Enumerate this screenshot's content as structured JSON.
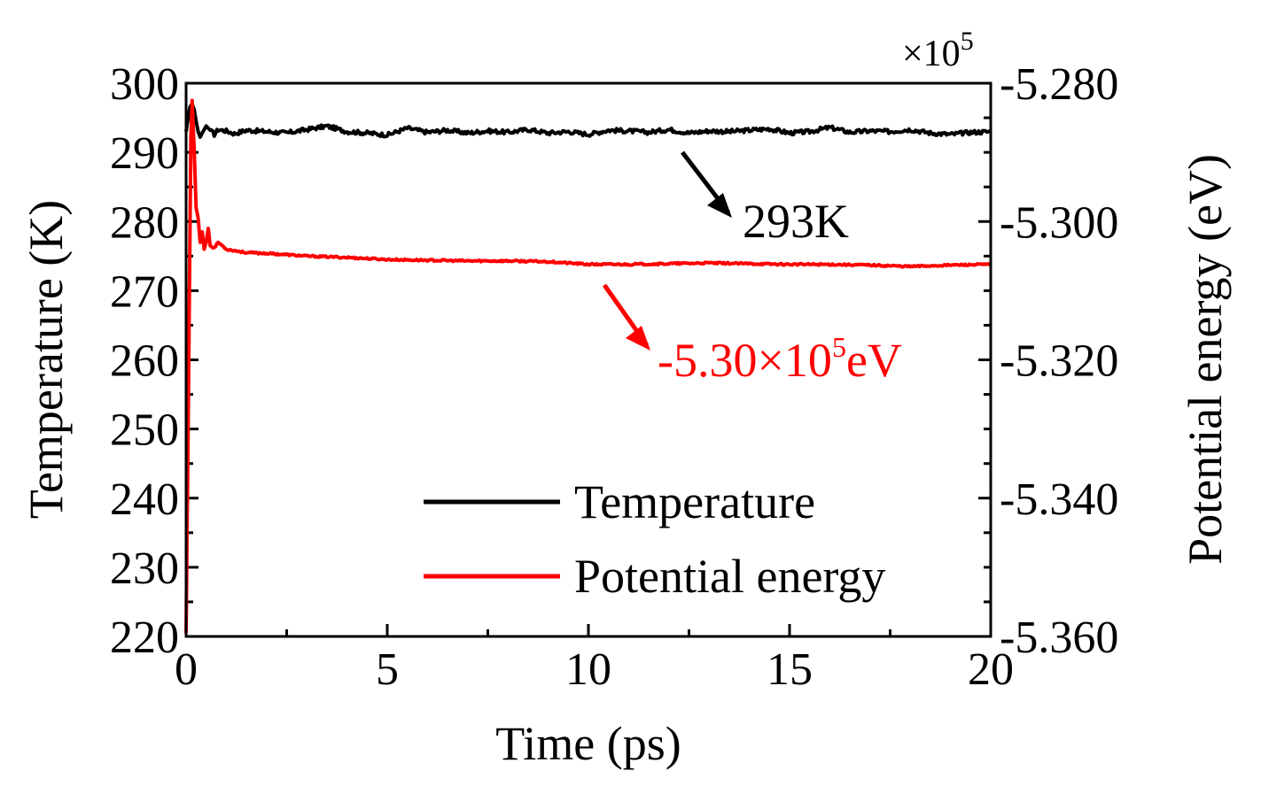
{
  "chart_data": {
    "type": "line",
    "xlabel": "Time (ps)",
    "ylabel_left": "Temperature (K)",
    "ylabel_right": "Potential energy (eV)",
    "right_multiplier": "×10",
    "right_multiplier_exp": "5",
    "xlim": [
      0,
      20
    ],
    "ylim_left": [
      220,
      300
    ],
    "ylim_right": [
      -5.36,
      -5.28
    ],
    "x_ticks": [
      "0",
      "5",
      "10",
      "15",
      "20"
    ],
    "y_left_ticks": [
      "220",
      "230",
      "240",
      "250",
      "260",
      "270",
      "280",
      "290",
      "300"
    ],
    "y_right_ticks": [
      "-5.360",
      "-5.340",
      "-5.320",
      "-5.300",
      "-5.280"
    ],
    "legend_position": "bottom-right",
    "series": [
      {
        "name": "Temperature",
        "axis": "left",
        "color": "#000000",
        "x": [
          0.0,
          0.05,
          0.1,
          0.15,
          0.2,
          0.25,
          0.3,
          0.35,
          0.4,
          0.5,
          0.6,
          0.7,
          0.8,
          1.0,
          1.2,
          1.5,
          2.0,
          2.5,
          3.0,
          3.5,
          4.0,
          4.5,
          5.0,
          5.5,
          6.0,
          6.5,
          7.0,
          7.5,
          8.0,
          8.5,
          9.0,
          9.5,
          10.0,
          10.5,
          11.0,
          11.5,
          12.0,
          12.5,
          13.0,
          13.5,
          14.0,
          14.5,
          15.0,
          15.5,
          16.0,
          16.5,
          17.0,
          17.5,
          18.0,
          18.5,
          19.0,
          19.5,
          20.0
        ],
        "y": [
          293.0,
          295.0,
          296.6,
          297.0,
          296.2,
          294.5,
          293.0,
          292.2,
          292.8,
          293.8,
          293.2,
          292.6,
          293.3,
          293.1,
          292.7,
          293.2,
          293.0,
          292.8,
          293.3,
          293.8,
          293.0,
          292.8,
          292.5,
          293.5,
          292.9,
          293.2,
          292.8,
          293.1,
          292.9,
          293.3,
          292.8,
          293.0,
          292.6,
          293.2,
          293.1,
          292.9,
          293.3,
          292.8,
          293.1,
          293.0,
          293.2,
          293.4,
          292.8,
          293.0,
          293.6,
          292.9,
          293.1,
          293.0,
          293.3,
          292.8,
          292.6,
          292.9,
          293.0
        ]
      },
      {
        "name": "Potential energy",
        "axis": "right",
        "color": "#ff0000",
        "x": [
          0.0,
          0.05,
          0.1,
          0.12,
          0.15,
          0.2,
          0.25,
          0.3,
          0.35,
          0.4,
          0.45,
          0.5,
          0.55,
          0.6,
          0.7,
          0.8,
          1.0,
          1.2,
          1.5,
          2.0,
          2.5,
          3.0,
          4.0,
          5.0,
          6.0,
          7.0,
          8.0,
          9.0,
          10.0,
          11.0,
          12.0,
          13.0,
          14.0,
          15.0,
          16.0,
          17.0,
          18.0,
          19.0,
          20.0
        ],
        "y": [
          -5.3595,
          -5.33,
          -5.3,
          -5.288,
          -5.2825,
          -5.2895,
          -5.298,
          -5.2995,
          -5.303,
          -5.3015,
          -5.304,
          -5.303,
          -5.301,
          -5.3035,
          -5.3038,
          -5.303,
          -5.304,
          -5.3042,
          -5.3045,
          -5.3046,
          -5.3048,
          -5.305,
          -5.3052,
          -5.3055,
          -5.3056,
          -5.3057,
          -5.3057,
          -5.3058,
          -5.3062,
          -5.3062,
          -5.3061,
          -5.306,
          -5.3061,
          -5.3062,
          -5.3062,
          -5.3063,
          -5.3065,
          -5.3063,
          -5.3062
        ]
      }
    ],
    "annotations": [
      {
        "text": "293K",
        "color": "#000000"
      },
      {
        "text_main": "-5.30×10",
        "text_sup": "5",
        "text_unit": "eV",
        "color": "#ff0000"
      }
    ]
  }
}
